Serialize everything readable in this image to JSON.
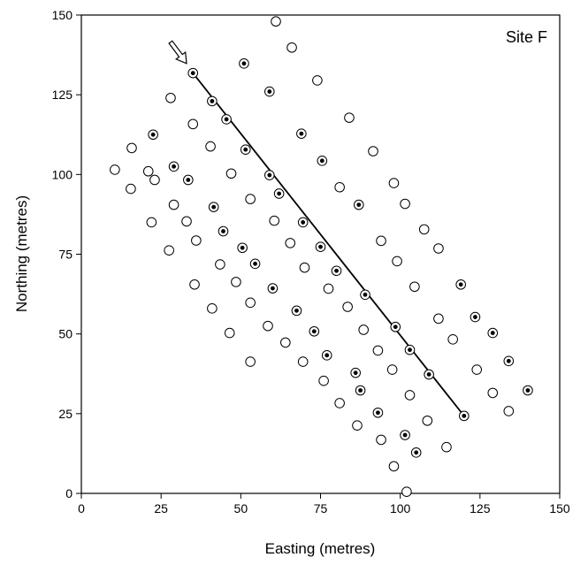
{
  "chart_data": {
    "type": "scatter",
    "title": "",
    "panel_label": "Site F",
    "xlabel": "Easting (metres)",
    "ylabel": "Northing (metres)",
    "xlim": [
      0,
      150
    ],
    "ylim": [
      0,
      150
    ],
    "xticks": [
      0,
      25,
      50,
      75,
      100,
      125,
      150
    ],
    "yticks": [
      0,
      25,
      50,
      75,
      100,
      125,
      150
    ],
    "grid": false,
    "legend": "none",
    "series": [
      {
        "marker": "open circle",
        "points": [
          [
            10.5,
            101.5
          ],
          [
            15.5,
            95.5
          ],
          [
            15.8,
            108.3
          ],
          [
            21,
            101
          ],
          [
            22,
            85
          ],
          [
            23,
            98.3
          ],
          [
            27.5,
            76.2
          ],
          [
            28,
            124
          ],
          [
            29,
            90.5
          ],
          [
            33,
            85.3
          ],
          [
            35,
            115.8
          ],
          [
            35.5,
            65.5
          ],
          [
            36,
            79.3
          ],
          [
            40.5,
            108.8
          ],
          [
            41,
            58
          ],
          [
            43.5,
            71.8
          ],
          [
            46.5,
            50.3
          ],
          [
            47,
            100.3
          ],
          [
            48.5,
            66.3
          ],
          [
            53,
            92.3
          ],
          [
            53,
            59.8
          ],
          [
            53,
            41.3
          ],
          [
            58.5,
            52.5
          ],
          [
            60.5,
            85.5
          ],
          [
            61,
            148
          ],
          [
            64,
            47.3
          ],
          [
            65.5,
            78.5
          ],
          [
            66,
            139.8
          ],
          [
            69.5,
            41.3
          ],
          [
            70,
            70.8
          ],
          [
            74,
            129.5
          ],
          [
            76,
            35.3
          ],
          [
            77.5,
            64.2
          ],
          [
            81,
            96
          ],
          [
            81,
            28.3
          ],
          [
            83.5,
            58.5
          ],
          [
            84,
            117.8
          ],
          [
            86.5,
            21.3
          ],
          [
            88.5,
            51.3
          ],
          [
            91.5,
            107.3
          ],
          [
            93,
            44.8
          ],
          [
            94,
            79.2
          ],
          [
            94,
            16.8
          ],
          [
            97.5,
            38.8
          ],
          [
            98,
            97.3
          ],
          [
            98,
            8.5
          ],
          [
            99,
            72.8
          ],
          [
            101.5,
            90.8
          ],
          [
            102,
            0.5
          ],
          [
            103,
            30.8
          ],
          [
            104.5,
            64.8
          ],
          [
            107.5,
            82.8
          ],
          [
            108.5,
            22.8
          ],
          [
            112,
            76.8
          ],
          [
            112,
            54.8
          ],
          [
            114.5,
            14.5
          ],
          [
            116.5,
            48.3
          ],
          [
            124,
            38.8
          ],
          [
            129,
            31.5
          ],
          [
            134,
            25.8
          ]
        ]
      },
      {
        "marker": "dotted circle",
        "points": [
          [
            22.5,
            112.5
          ],
          [
            29,
            102.5
          ],
          [
            33.5,
            98.3
          ],
          [
            35,
            131.8
          ],
          [
            41,
            123
          ],
          [
            41.5,
            89.8
          ],
          [
            44.5,
            82.2
          ],
          [
            45.5,
            117.3
          ],
          [
            50.5,
            77
          ],
          [
            51,
            134.8
          ],
          [
            51.5,
            107.8
          ],
          [
            54.5,
            72
          ],
          [
            59,
            126
          ],
          [
            59,
            99.8
          ],
          [
            60,
            64.3
          ],
          [
            62,
            94
          ],
          [
            67.5,
            57.3
          ],
          [
            69,
            112.8
          ],
          [
            69.5,
            85
          ],
          [
            73,
            50.8
          ],
          [
            75,
            77.3
          ],
          [
            75.5,
            104.3
          ],
          [
            77,
            43.3
          ],
          [
            80,
            69.8
          ],
          [
            86,
            37.8
          ],
          [
            87,
            90.5
          ],
          [
            87.5,
            32.3
          ],
          [
            89,
            62.3
          ],
          [
            93,
            25.3
          ],
          [
            98.5,
            52.2
          ],
          [
            101.5,
            18.3
          ],
          [
            103,
            45
          ],
          [
            105,
            12.8
          ],
          [
            109,
            37.3
          ],
          [
            119,
            65.5
          ],
          [
            120,
            24.3
          ],
          [
            123.5,
            55.3
          ],
          [
            129,
            50.3
          ],
          [
            134,
            41.5
          ],
          [
            140,
            32.3
          ]
        ]
      }
    ],
    "line": {
      "from": [
        35,
        131.8
      ],
      "to": [
        120,
        24.3
      ]
    },
    "arrow": {
      "from": [
        28,
        141.5
      ],
      "to": [
        33,
        134.8
      ]
    }
  }
}
